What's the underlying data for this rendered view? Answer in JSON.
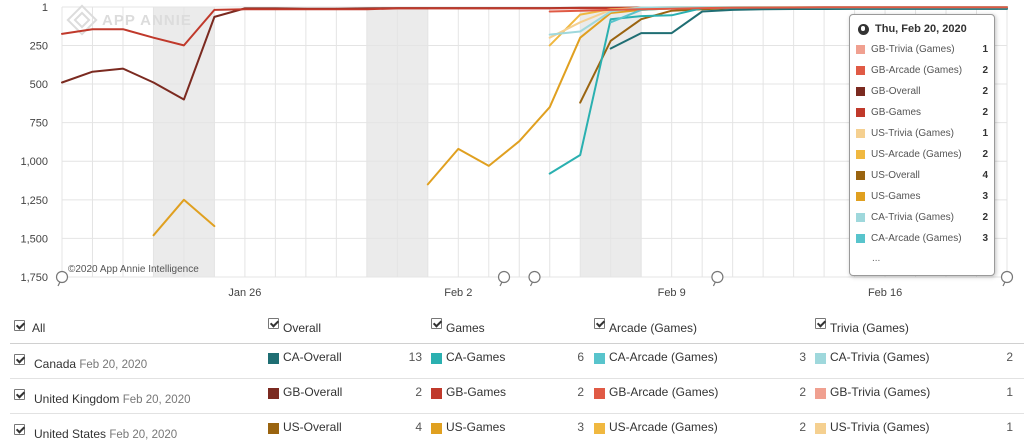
{
  "watermark": "APP ANNIE",
  "copyright": "©2020 App Annie Intelligence",
  "chart_data": {
    "type": "line",
    "y_axis": {
      "reversed": true,
      "ylim": [
        1,
        1750
      ],
      "ticks": [
        "1",
        "250",
        "500",
        "750",
        "1,000",
        "1,250",
        "1,500",
        "1,750"
      ],
      "tick_values": [
        1,
        250,
        500,
        750,
        1000,
        1250,
        1500,
        1750
      ]
    },
    "x_axis": {
      "start": "Jan 20",
      "end": "Feb 20",
      "ticks": [
        {
          "label": "Jan 26",
          "day": 6
        },
        {
          "label": "Feb 2",
          "day": 13
        },
        {
          "label": "Feb 9",
          "day": 20
        },
        {
          "label": "Feb 16",
          "day": 27
        }
      ]
    },
    "weekend_bands": [
      [
        3,
        5
      ],
      [
        10,
        12
      ],
      [
        17,
        19
      ]
    ],
    "grid": true,
    "legend_position": "table-below",
    "series": [
      {
        "name": "GB-Overall",
        "color": "#7b2a20",
        "x": [
          0,
          1,
          2,
          3,
          4,
          5,
          6,
          7,
          8,
          9,
          10,
          11,
          12,
          13,
          14,
          15,
          16,
          17,
          18,
          19,
          20,
          21,
          22,
          23,
          24,
          25,
          26,
          27,
          28,
          29,
          30,
          31
        ],
        "y": [
          490,
          420,
          400,
          490,
          600,
          65,
          10,
          10,
          12,
          12,
          10,
          8,
          8,
          8,
          8,
          8,
          8,
          6,
          6,
          5,
          5,
          4,
          4,
          3,
          3,
          3,
          3,
          2,
          2,
          2,
          2,
          2
        ]
      },
      {
        "name": "GB-Games",
        "color": "#c0392b",
        "x": [
          0,
          1,
          2,
          3,
          4,
          5,
          6,
          7,
          8,
          9,
          10,
          11,
          12,
          13,
          14,
          15,
          16,
          17,
          18,
          19,
          20,
          21,
          22,
          23,
          24,
          25,
          26,
          27,
          28,
          29,
          30,
          31
        ],
        "y": [
          175,
          145,
          145,
          200,
          250,
          20,
          15,
          15,
          15,
          15,
          15,
          10,
          10,
          10,
          10,
          10,
          10,
          8,
          8,
          6,
          6,
          5,
          4,
          4,
          3,
          3,
          3,
          3,
          2,
          2,
          2,
          2
        ]
      },
      {
        "name": "US-Games",
        "color": "#e0a020",
        "x": [
          3,
          4,
          5
        ],
        "y": [
          1480,
          1250,
          1420
        ]
      },
      {
        "name": "US-Games",
        "color": "#e0a020",
        "x": [
          12,
          13,
          14,
          15,
          16,
          17,
          18,
          19,
          20,
          21,
          22,
          23,
          24,
          25,
          26,
          27,
          28,
          29,
          30,
          31
        ],
        "y": [
          1150,
          920,
          1030,
          870,
          650,
          200,
          40,
          20,
          10,
          8,
          6,
          5,
          5,
          4,
          4,
          3,
          3,
          3,
          3,
          3
        ]
      },
      {
        "name": "US-Overall",
        "color": "#9a6410",
        "x": [
          17,
          18,
          19,
          20,
          21,
          22,
          23,
          24,
          25,
          26,
          27,
          28,
          29,
          30,
          31
        ],
        "y": [
          620,
          220,
          80,
          25,
          15,
          8,
          6,
          5,
          5,
          4,
          4,
          4,
          4,
          4,
          4
        ]
      },
      {
        "name": "US-Arcade (Games)",
        "color": "#f0b840",
        "x": [
          16,
          17,
          18,
          19,
          20,
          21,
          22,
          23,
          24,
          25,
          26,
          27,
          28,
          29,
          30,
          31
        ],
        "y": [
          250,
          50,
          15,
          8,
          5,
          4,
          3,
          3,
          3,
          2,
          2,
          2,
          2,
          2,
          2,
          2
        ]
      },
      {
        "name": "US-Trivia (Games)",
        "color": "#f5d090",
        "x": [
          16,
          17,
          18,
          19,
          20,
          21,
          22,
          23,
          24,
          25,
          26,
          27,
          28,
          29,
          30,
          31
        ],
        "y": [
          200,
          100,
          20,
          5,
          3,
          2,
          2,
          1,
          1,
          1,
          1,
          1,
          1,
          1,
          1,
          1
        ]
      },
      {
        "name": "CA-Games",
        "color": "#2ab0b0",
        "x": [
          16,
          17,
          18,
          19,
          20,
          21,
          22,
          23,
          24,
          25,
          26,
          27,
          28,
          29,
          30,
          31
        ],
        "y": [
          1080,
          960,
          80,
          60,
          55,
          8,
          7,
          6,
          6,
          6,
          6,
          6,
          6,
          6,
          6,
          6
        ]
      },
      {
        "name": "CA-Overall",
        "color": "#1f6e73",
        "x": [
          18,
          19,
          20,
          21,
          22,
          23,
          24,
          25,
          26,
          27,
          28,
          29,
          30,
          31
        ],
        "y": [
          270,
          170,
          170,
          30,
          20,
          15,
          14,
          14,
          13,
          13,
          13,
          13,
          13,
          13
        ]
      },
      {
        "name": "CA-Arcade (Games)",
        "color": "#58c4cc",
        "x": [
          18,
          19,
          20,
          21,
          22,
          23,
          24,
          25,
          26,
          27,
          28,
          29,
          30,
          31
        ],
        "y": [
          100,
          20,
          10,
          6,
          5,
          4,
          4,
          3,
          3,
          3,
          3,
          3,
          3,
          3
        ]
      },
      {
        "name": "CA-Trivia (Games)",
        "color": "#9fd8dc",
        "x": [
          16,
          17,
          18,
          19,
          20,
          21,
          22,
          23,
          24,
          25,
          26,
          27,
          28,
          29,
          30,
          31
        ],
        "y": [
          180,
          160,
          30,
          5,
          3,
          2,
          2,
          2,
          2,
          2,
          2,
          2,
          2,
          2,
          2,
          2
        ]
      },
      {
        "name": "GB-Arcade (Games)",
        "color": "#e05a45",
        "x": [
          16,
          17,
          18,
          19,
          20,
          21,
          22,
          23,
          24,
          25,
          26,
          27,
          28,
          29,
          30,
          31
        ],
        "y": [
          30,
          25,
          20,
          15,
          12,
          8,
          6,
          5,
          4,
          3,
          3,
          2,
          2,
          2,
          2,
          2
        ]
      }
    ]
  },
  "tooltip": {
    "date": "Thu, Feb 20, 2020",
    "rows": [
      {
        "label": "GB-Trivia (Games)",
        "value": "1",
        "color": "#f0a090"
      },
      {
        "label": "GB-Arcade (Games)",
        "value": "2",
        "color": "#e05a45"
      },
      {
        "label": "GB-Overall",
        "value": "2",
        "color": "#7b2a20"
      },
      {
        "label": "GB-Games",
        "value": "2",
        "color": "#c0392b"
      },
      {
        "label": "US-Trivia (Games)",
        "value": "1",
        "color": "#f5d090"
      },
      {
        "label": "US-Arcade (Games)",
        "value": "2",
        "color": "#f0b840"
      },
      {
        "label": "US-Overall",
        "value": "4",
        "color": "#9a6410"
      },
      {
        "label": "US-Games",
        "value": "3",
        "color": "#e0a020"
      },
      {
        "label": "CA-Trivia (Games)",
        "value": "2",
        "color": "#9fd8dc"
      },
      {
        "label": "CA-Arcade (Games)",
        "value": "3",
        "color": "#58c4cc"
      }
    ],
    "more": "..."
  },
  "table": {
    "headers": {
      "all": "All",
      "overall": "Overall",
      "games": "Games",
      "arcade": "Arcade (Games)",
      "trivia": "Trivia (Games)"
    },
    "rows": [
      {
        "country": "Canada",
        "date": "Feb 20, 2020",
        "overall": {
          "label": "CA-Overall",
          "value": "13",
          "color": "#1f6e73"
        },
        "games": {
          "label": "CA-Games",
          "value": "6",
          "color": "#2ab0b0"
        },
        "arcade": {
          "label": "CA-Arcade (Games)",
          "value": "3",
          "color": "#58c4cc"
        },
        "trivia": {
          "label": "CA-Trivia (Games)",
          "value": "2",
          "color": "#9fd8dc"
        }
      },
      {
        "country": "United Kingdom",
        "date": "Feb 20, 2020",
        "overall": {
          "label": "GB-Overall",
          "value": "2",
          "color": "#7b2a20"
        },
        "games": {
          "label": "GB-Games",
          "value": "2",
          "color": "#c0392b"
        },
        "arcade": {
          "label": "GB-Arcade (Games)",
          "value": "2",
          "color": "#e05a45"
        },
        "trivia": {
          "label": "GB-Trivia (Games)",
          "value": "1",
          "color": "#f0a090"
        }
      },
      {
        "country": "United States",
        "date": "Feb 20, 2020",
        "overall": {
          "label": "US-Overall",
          "value": "4",
          "color": "#9a6410"
        },
        "games": {
          "label": "US-Games",
          "value": "3",
          "color": "#e0a020"
        },
        "arcade": {
          "label": "US-Arcade (Games)",
          "value": "2",
          "color": "#f0b840"
        },
        "trivia": {
          "label": "US-Trivia (Games)",
          "value": "1",
          "color": "#f5d090"
        }
      }
    ]
  }
}
